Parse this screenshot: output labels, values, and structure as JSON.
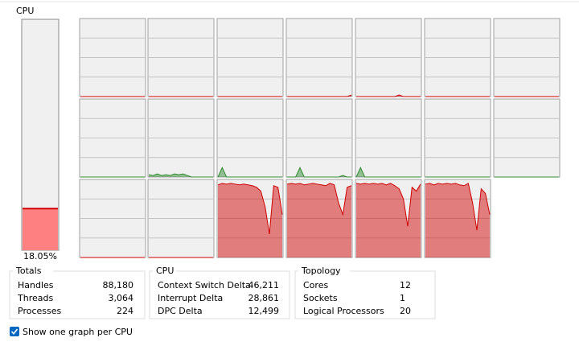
{
  "cpu_panel": {
    "title": "CPU",
    "usage": 18.05,
    "usage_label": "18.05%",
    "usage_fill": "#ff8080",
    "usage_line": "#d00000",
    "graph_ylim": [
      0,
      100
    ],
    "graph_yticks": [
      25,
      50,
      75
    ],
    "processors": [
      {
        "color": "#d00000",
        "values": [
          0,
          0,
          0,
          0,
          0,
          0,
          0,
          0,
          0,
          0,
          0,
          0,
          0,
          0,
          0,
          0
        ]
      },
      {
        "color": "#d00000",
        "values": [
          0,
          0,
          0,
          0,
          0,
          0,
          0,
          0,
          0,
          0,
          0,
          0,
          0,
          0,
          0,
          0
        ]
      },
      {
        "color": "#d00000",
        "values": [
          0,
          0,
          0,
          0,
          0,
          0,
          0,
          0,
          0,
          0,
          0,
          0,
          0,
          0,
          0,
          0
        ]
      },
      {
        "color": "#d00000",
        "values": [
          0,
          0,
          0,
          0,
          0,
          0,
          0,
          0,
          0,
          0,
          0,
          0,
          0,
          0,
          0,
          2
        ]
      },
      {
        "color": "#d00000",
        "values": [
          0,
          0,
          0,
          0,
          0,
          0,
          0,
          0,
          0,
          0,
          2,
          0,
          0,
          0,
          0,
          0
        ]
      },
      {
        "color": "#d00000",
        "values": [
          0,
          0,
          0,
          0,
          0,
          0,
          0,
          0,
          0,
          0,
          0,
          0,
          0,
          0,
          0,
          0
        ]
      },
      {
        "color": "#d00000",
        "values": [
          0,
          0,
          0,
          0,
          0,
          0,
          0,
          0,
          0,
          0,
          0,
          0,
          0,
          0,
          0,
          0
        ]
      },
      {
        "color": "#2e8b2e",
        "values": [
          0,
          0,
          0,
          0,
          0,
          0,
          0,
          0,
          0,
          0,
          0,
          0,
          0,
          0,
          0,
          0
        ]
      },
      {
        "color": "#2e8b2e",
        "values": [
          3,
          2,
          4,
          2,
          3,
          2,
          4,
          3,
          4,
          2,
          0,
          0,
          0,
          0,
          0,
          0
        ]
      },
      {
        "color": "#2e8b2e",
        "values": [
          0,
          12,
          0,
          0,
          0,
          0,
          0,
          0,
          0,
          0,
          0,
          0,
          0,
          0,
          0,
          0
        ]
      },
      {
        "color": "#2e8b2e",
        "values": [
          0,
          0,
          0,
          12,
          0,
          0,
          0,
          0,
          0,
          0,
          0,
          0,
          0,
          2,
          0,
          0
        ]
      },
      {
        "color": "#2e8b2e",
        "values": [
          0,
          12,
          0,
          0,
          0,
          0,
          0,
          0,
          0,
          0,
          0,
          0,
          0,
          0,
          0,
          0
        ]
      },
      {
        "color": "#2e8b2e",
        "values": [
          0,
          0,
          0,
          0,
          0,
          0,
          0,
          0,
          0,
          0,
          0,
          0,
          0,
          0,
          0,
          0
        ]
      },
      {
        "color": "#2e8b2e",
        "values": [
          0,
          0,
          0,
          0,
          0,
          0,
          0,
          0,
          0,
          0,
          0,
          0,
          0,
          0,
          0,
          0
        ]
      },
      {
        "color": "#d00000",
        "values": [
          0,
          0,
          0,
          0,
          0,
          0,
          0,
          0,
          0,
          0,
          0,
          0,
          0,
          0,
          0,
          0
        ]
      },
      {
        "color": "#d00000",
        "values": [
          0,
          0,
          0,
          0,
          0,
          0,
          0,
          0,
          0,
          0,
          0,
          0,
          0,
          0,
          0,
          0
        ]
      },
      {
        "color": "#d00000",
        "values": [
          93,
          95,
          94,
          95,
          94,
          93,
          94,
          93,
          92,
          90,
          85,
          65,
          30,
          92,
          90,
          55
        ]
      },
      {
        "color": "#d00000",
        "values": [
          94,
          95,
          94,
          95,
          93,
          94,
          95,
          94,
          93,
          92,
          95,
          93,
          70,
          55,
          90,
          92
        ]
      },
      {
        "color": "#d00000",
        "values": [
          95,
          94,
          95,
          94,
          95,
          94,
          95,
          93,
          95,
          92,
          88,
          75,
          40,
          90,
          85,
          94
        ]
      },
      {
        "color": "#d00000",
        "values": [
          94,
          95,
          93,
          95,
          94,
          95,
          94,
          95,
          93,
          92,
          95,
          70,
          35,
          88,
          82,
          55
        ]
      }
    ]
  },
  "totals": {
    "title": "Totals",
    "rows": [
      [
        "Handles",
        "88,180"
      ],
      [
        "Threads",
        "3,064"
      ],
      [
        "Processes",
        "224"
      ]
    ]
  },
  "cpu_stats": {
    "title": "CPU",
    "rows": [
      [
        "Context Switch Delta",
        "46,211"
      ],
      [
        "Interrupt Delta",
        "28,861"
      ],
      [
        "DPC Delta",
        "12,499"
      ]
    ]
  },
  "topology": {
    "title": "Topology",
    "rows": [
      [
        "Cores",
        "12"
      ],
      [
        "Sockets",
        "1"
      ],
      [
        "Logical Processors",
        "20"
      ]
    ]
  },
  "option": {
    "label": "Show one graph per CPU",
    "checked": true
  }
}
